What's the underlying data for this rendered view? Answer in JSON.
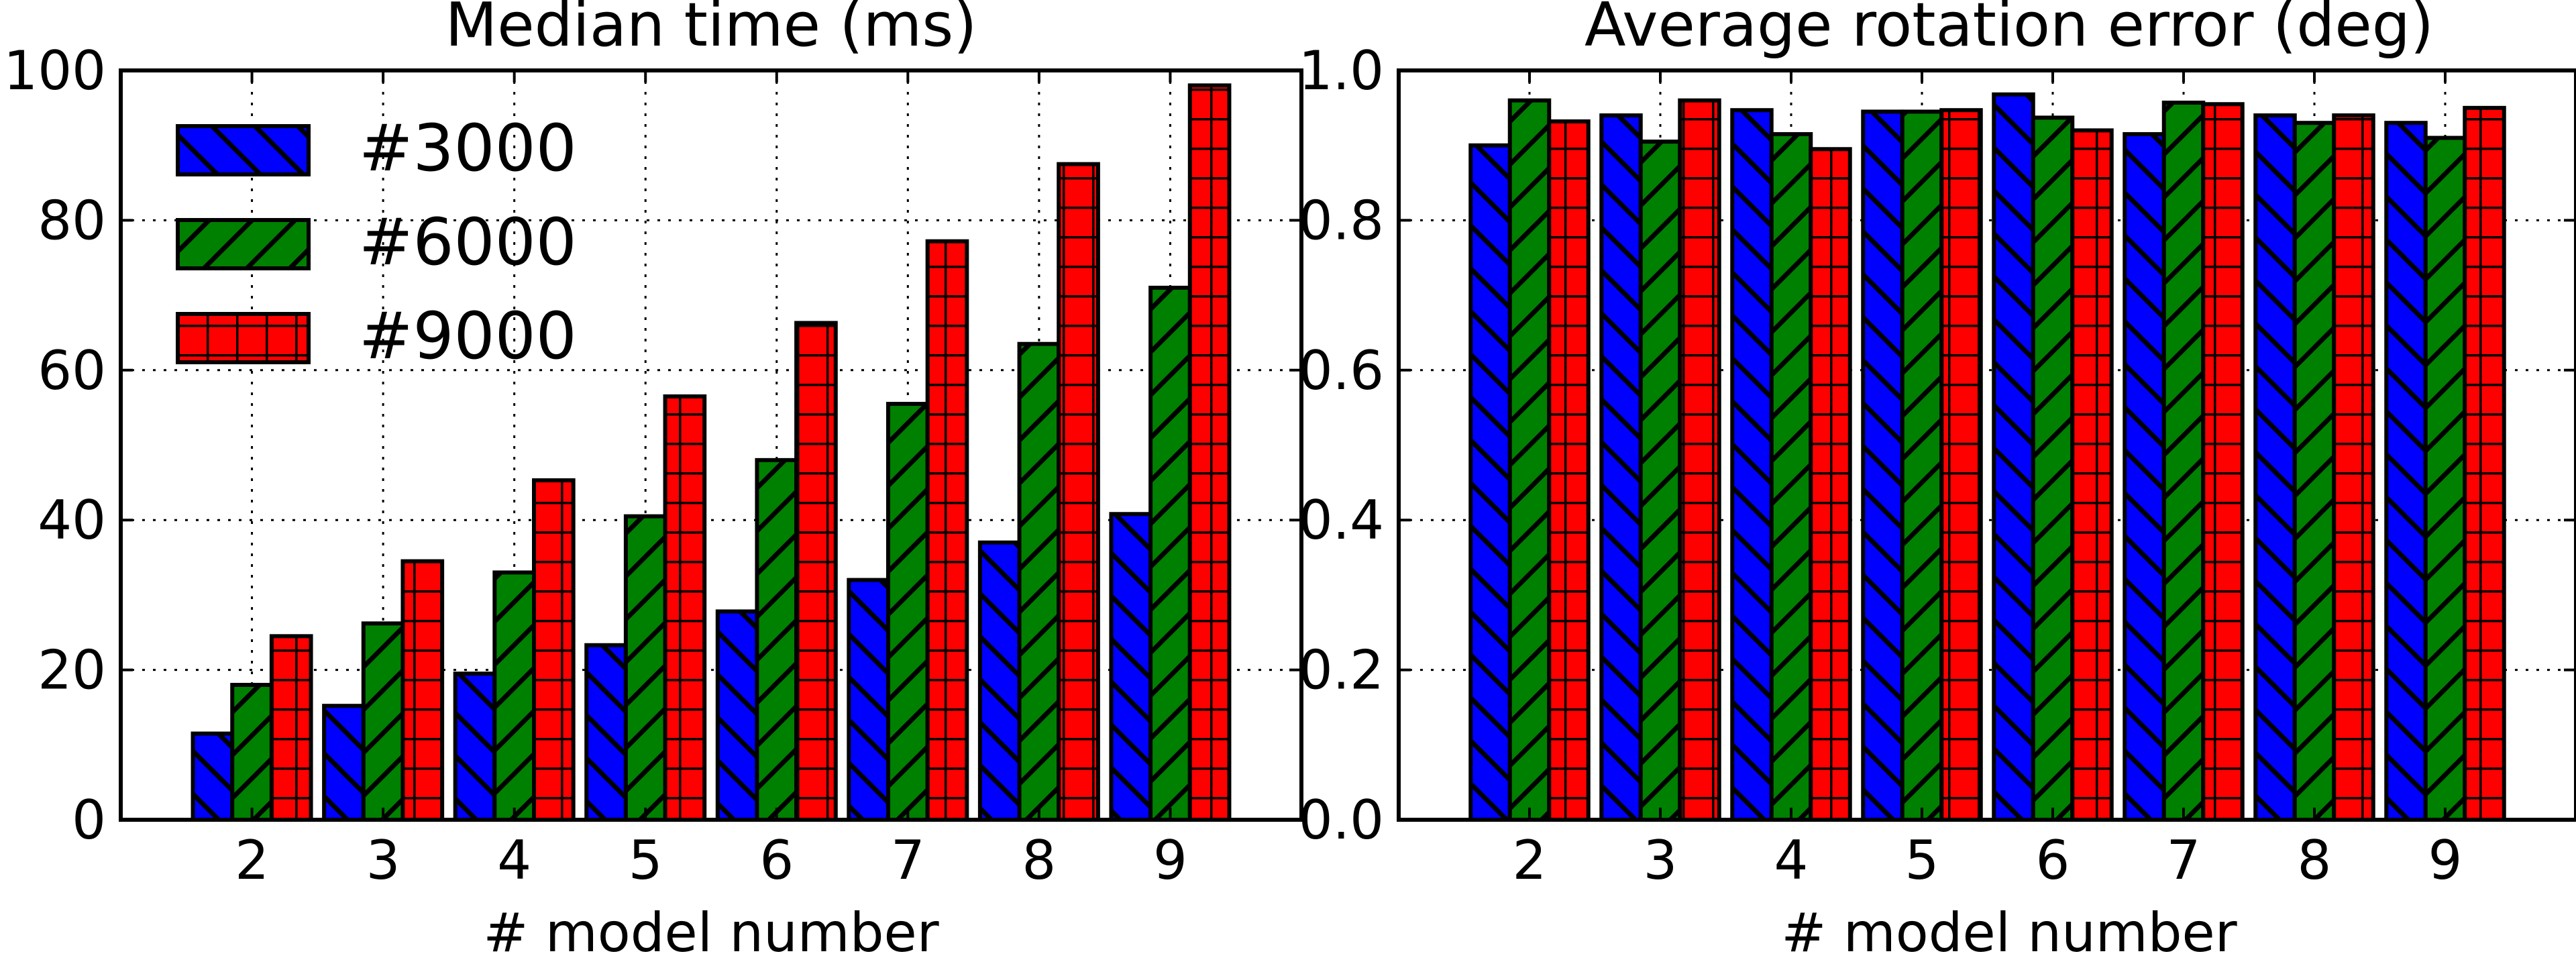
{
  "chart_data": [
    {
      "type": "bar",
      "title": "Median time (ms)",
      "xlabel": "# model number",
      "ylabel": "",
      "categories": [
        "2",
        "3",
        "4",
        "5",
        "6",
        "7",
        "8",
        "9"
      ],
      "ylim": [
        0,
        100
      ],
      "yticks": [
        "0",
        "20",
        "40",
        "60",
        "80",
        "100"
      ],
      "grid": true,
      "legend": "top-left",
      "series": [
        {
          "name": "#3000",
          "color": "#0000ff",
          "hatch": "backslash",
          "values": [
            11.5,
            15.2,
            19.5,
            23.3,
            27.8,
            32.0,
            37.0,
            40.8
          ]
        },
        {
          "name": "#6000",
          "color": "#008000",
          "hatch": "slash",
          "values": [
            18.0,
            26.2,
            33.0,
            40.5,
            48.0,
            55.5,
            63.5,
            71.0
          ]
        },
        {
          "name": "#9000",
          "color": "#ff0000",
          "hatch": "grid",
          "values": [
            24.5,
            34.5,
            45.3,
            56.5,
            66.3,
            77.2,
            87.5,
            98.0
          ]
        }
      ]
    },
    {
      "type": "bar",
      "title": "Average rotation error (deg)",
      "xlabel": "# model number",
      "ylabel": "",
      "categories": [
        "2",
        "3",
        "4",
        "5",
        "6",
        "7",
        "8",
        "9"
      ],
      "ylim": [
        0.0,
        1.0
      ],
      "yticks": [
        "0.0",
        "0.2",
        "0.4",
        "0.6",
        "0.8",
        "1.0"
      ],
      "grid": true,
      "series": [
        {
          "name": "#3000",
          "color": "#0000ff",
          "hatch": "backslash",
          "values": [
            0.9,
            0.94,
            0.947,
            0.945,
            0.968,
            0.915,
            0.94,
            0.93
          ]
        },
        {
          "name": "#6000",
          "color": "#008000",
          "hatch": "slash",
          "values": [
            0.96,
            0.905,
            0.915,
            0.945,
            0.937,
            0.957,
            0.93,
            0.91
          ]
        },
        {
          "name": "#9000",
          "color": "#ff0000",
          "hatch": "grid",
          "values": [
            0.932,
            0.96,
            0.895,
            0.947,
            0.92,
            0.955,
            0.94,
            0.95
          ]
        }
      ]
    }
  ]
}
